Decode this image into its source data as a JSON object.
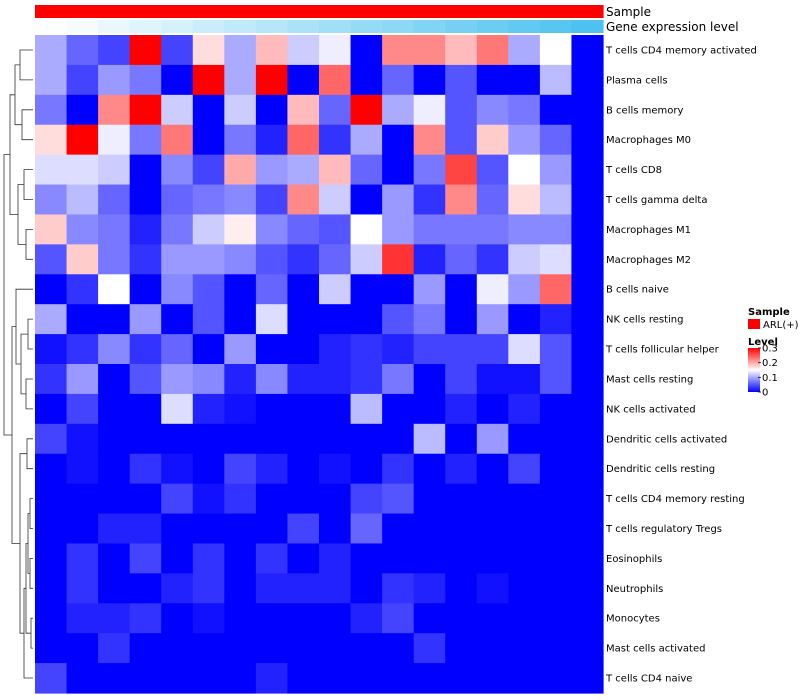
{
  "chart_data": {
    "type": "heatmap",
    "title": "",
    "annotations": [
      {
        "name": "Sample",
        "color": "#ff0000"
      },
      {
        "name": "Gene expression level",
        "gradient": [
          "#ffffff",
          "#4dc2f0"
        ]
      }
    ],
    "rows": [
      "T cells CD4 memory activated",
      "Plasma cells",
      "B cells memory",
      "Macrophages M0",
      "T cells CD8",
      "T cells gamma delta",
      "Macrophages M1",
      "Macrophages M2",
      "B cells naive",
      "NK cells resting",
      "T cells follicular helper",
      "Mast cells resting",
      "NK cells activated",
      "Dendritic cells activated",
      "Dendritic cells resting",
      "T cells CD4 memory resting",
      "T cells regulatory  Tregs",
      "Eosinophils",
      "Neutrophils",
      "Monocytes",
      "Mast cells activated",
      "T cells CD4 naive"
    ],
    "n_columns": 18,
    "values": [
      [
        0.1,
        0.06,
        0.04,
        0.3,
        0.04,
        0.17,
        0.1,
        0.19,
        0.12,
        0.14,
        0.0,
        0.22,
        0.22,
        0.19,
        0.23,
        0.1,
        0.15,
        0.0
      ],
      [
        0.1,
        0.04,
        0.09,
        0.07,
        0.0,
        0.3,
        0.1,
        0.3,
        0.0,
        0.24,
        0.0,
        0.06,
        0.0,
        0.05,
        0.0,
        0.0,
        0.11,
        0.0
      ],
      [
        0.07,
        0.0,
        0.22,
        0.3,
        0.12,
        0.0,
        0.12,
        0.0,
        0.19,
        0.06,
        0.3,
        0.1,
        0.14,
        0.05,
        0.08,
        0.07,
        0.0,
        0.0
      ],
      [
        0.17,
        0.3,
        0.14,
        0.07,
        0.23,
        0.0,
        0.07,
        0.02,
        0.24,
        0.03,
        0.1,
        0.0,
        0.22,
        0.05,
        0.18,
        0.09,
        0.06,
        0.0
      ],
      [
        0.13,
        0.13,
        0.12,
        0.0,
        0.08,
        0.04,
        0.2,
        0.09,
        0.1,
        0.19,
        0.06,
        0.0,
        0.07,
        0.26,
        0.05,
        0.15,
        0.09,
        0.0
      ],
      [
        0.08,
        0.11,
        0.06,
        0.0,
        0.06,
        0.07,
        0.08,
        0.04,
        0.22,
        0.12,
        0.0,
        0.09,
        0.03,
        0.22,
        0.06,
        0.17,
        0.11,
        0.0
      ],
      [
        0.18,
        0.08,
        0.07,
        0.02,
        0.07,
        0.12,
        0.16,
        0.08,
        0.06,
        0.05,
        0.15,
        0.09,
        0.07,
        0.07,
        0.07,
        0.08,
        0.08,
        0.0
      ],
      [
        0.05,
        0.18,
        0.07,
        0.03,
        0.09,
        0.09,
        0.08,
        0.05,
        0.03,
        0.06,
        0.12,
        0.27,
        0.02,
        0.06,
        0.03,
        0.12,
        0.13,
        0.0
      ],
      [
        0.0,
        0.03,
        0.15,
        0.0,
        0.08,
        0.05,
        0.0,
        0.06,
        0.0,
        0.12,
        0.0,
        0.0,
        0.09,
        0.0,
        0.14,
        0.09,
        0.24,
        0.0
      ],
      [
        0.1,
        0.0,
        0.0,
        0.09,
        0.0,
        0.05,
        0.0,
        0.13,
        0.0,
        0.0,
        0.0,
        0.05,
        0.07,
        0.0,
        0.09,
        0.0,
        0.02,
        0.0
      ],
      [
        0.01,
        0.03,
        0.08,
        0.03,
        0.06,
        0.0,
        0.09,
        0.0,
        0.0,
        0.02,
        0.03,
        0.02,
        0.04,
        0.04,
        0.04,
        0.13,
        0.05,
        0.0
      ],
      [
        0.03,
        0.09,
        0.0,
        0.05,
        0.09,
        0.08,
        0.02,
        0.08,
        0.02,
        0.02,
        0.03,
        0.07,
        0.0,
        0.04,
        0.01,
        0.01,
        0.05,
        0.0
      ],
      [
        0.0,
        0.04,
        0.0,
        0.0,
        0.13,
        0.02,
        0.01,
        0.0,
        0.0,
        0.0,
        0.11,
        0.0,
        0.0,
        0.02,
        0.0,
        0.02,
        0.0,
        0.0
      ],
      [
        0.04,
        0.01,
        0.0,
        0.0,
        0.0,
        0.0,
        0.0,
        0.0,
        0.0,
        0.0,
        0.0,
        0.0,
        0.11,
        0.0,
        0.09,
        0.0,
        0.0,
        0.0
      ],
      [
        0.0,
        0.01,
        0.0,
        0.03,
        0.01,
        0.0,
        0.04,
        0.02,
        0.0,
        0.01,
        0.0,
        0.03,
        0.0,
        0.02,
        0.0,
        0.04,
        0.0,
        0.0
      ],
      [
        0.0,
        0.0,
        0.0,
        0.0,
        0.04,
        0.01,
        0.03,
        0.0,
        0.0,
        0.0,
        0.04,
        0.05,
        0.0,
        0.0,
        0.0,
        0.0,
        0.0,
        0.0
      ],
      [
        0.0,
        0.0,
        0.02,
        0.02,
        0.0,
        0.0,
        0.0,
        0.0,
        0.04,
        0.0,
        0.06,
        0.0,
        0.0,
        0.0,
        0.0,
        0.0,
        0.0,
        0.0
      ],
      [
        0.0,
        0.03,
        0.0,
        0.04,
        0.0,
        0.03,
        0.0,
        0.03,
        0.0,
        0.02,
        0.0,
        0.0,
        0.0,
        0.0,
        0.0,
        0.0,
        0.0,
        0.0
      ],
      [
        0.0,
        0.03,
        0.0,
        0.0,
        0.02,
        0.03,
        0.0,
        0.02,
        0.02,
        0.02,
        0.0,
        0.03,
        0.02,
        0.0,
        0.01,
        0.0,
        0.0,
        0.0
      ],
      [
        0.0,
        0.02,
        0.02,
        0.03,
        0.0,
        0.01,
        0.0,
        0.0,
        0.0,
        0.0,
        0.02,
        0.04,
        0.0,
        0.0,
        0.0,
        0.0,
        0.0,
        0.0
      ],
      [
        0.0,
        0.0,
        0.03,
        0.0,
        0.0,
        0.0,
        0.0,
        0.0,
        0.0,
        0.0,
        0.0,
        0.0,
        0.03,
        0.0,
        0.0,
        0.0,
        0.0,
        0.0
      ],
      [
        0.04,
        0.0,
        0.0,
        0.0,
        0.0,
        0.0,
        0.0,
        0.02,
        0.0,
        0.0,
        0.0,
        0.0,
        0.0,
        0.0,
        0.0,
        0.0,
        0.0,
        0.0
      ]
    ],
    "color_scale": {
      "min": 0,
      "max": 0.3,
      "low": "#0000ff",
      "mid": "#ffffff",
      "high": "#ff0000",
      "midpoint": 0.15
    },
    "legend": {
      "sample_title": "Sample",
      "sample_entry": "ARL(+)",
      "level_title": "Level",
      "ticks": [
        0.3,
        0.2,
        0.1,
        0
      ],
      "tick_labels": [
        "0.3",
        "0.2",
        "0.1",
        "0"
      ],
      "placement": "right"
    },
    "row_dendrogram": true
  }
}
